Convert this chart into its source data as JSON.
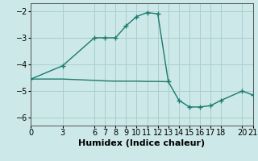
{
  "title": "",
  "xlabel": "Humidex (Indice chaleur)",
  "bg_color": "#cce8e8",
  "line_color": "#1a7a6e",
  "grid_color": "#aacece",
  "x_data": [
    0,
    3,
    6,
    7,
    8,
    9,
    10,
    11,
    12,
    13,
    14,
    15,
    16,
    17,
    18,
    20,
    21
  ],
  "y_data": [
    -4.55,
    -4.05,
    -3.0,
    -3.0,
    -3.0,
    -2.55,
    -2.2,
    -2.05,
    -2.1,
    -4.65,
    -5.35,
    -5.6,
    -5.6,
    -5.55,
    -5.35,
    -5.0,
    -5.15
  ],
  "x_line2": [
    0,
    3,
    6,
    7,
    8,
    9,
    10,
    11,
    12,
    13
  ],
  "y_line2": [
    -4.55,
    -4.55,
    -4.6,
    -4.62,
    -4.63,
    -4.63,
    -4.63,
    -4.64,
    -4.64,
    -4.65
  ],
  "xlim": [
    0,
    21
  ],
  "ylim": [
    -6.3,
    -1.7
  ],
  "yticks": [
    -6,
    -5,
    -4,
    -3,
    -2
  ],
  "xticks": [
    0,
    3,
    6,
    7,
    8,
    9,
    10,
    11,
    12,
    13,
    14,
    15,
    16,
    17,
    18,
    20,
    21
  ],
  "marker": "+",
  "marker_size": 5,
  "line_width": 1.0,
  "font_size": 7,
  "xlabel_fontsize": 8
}
